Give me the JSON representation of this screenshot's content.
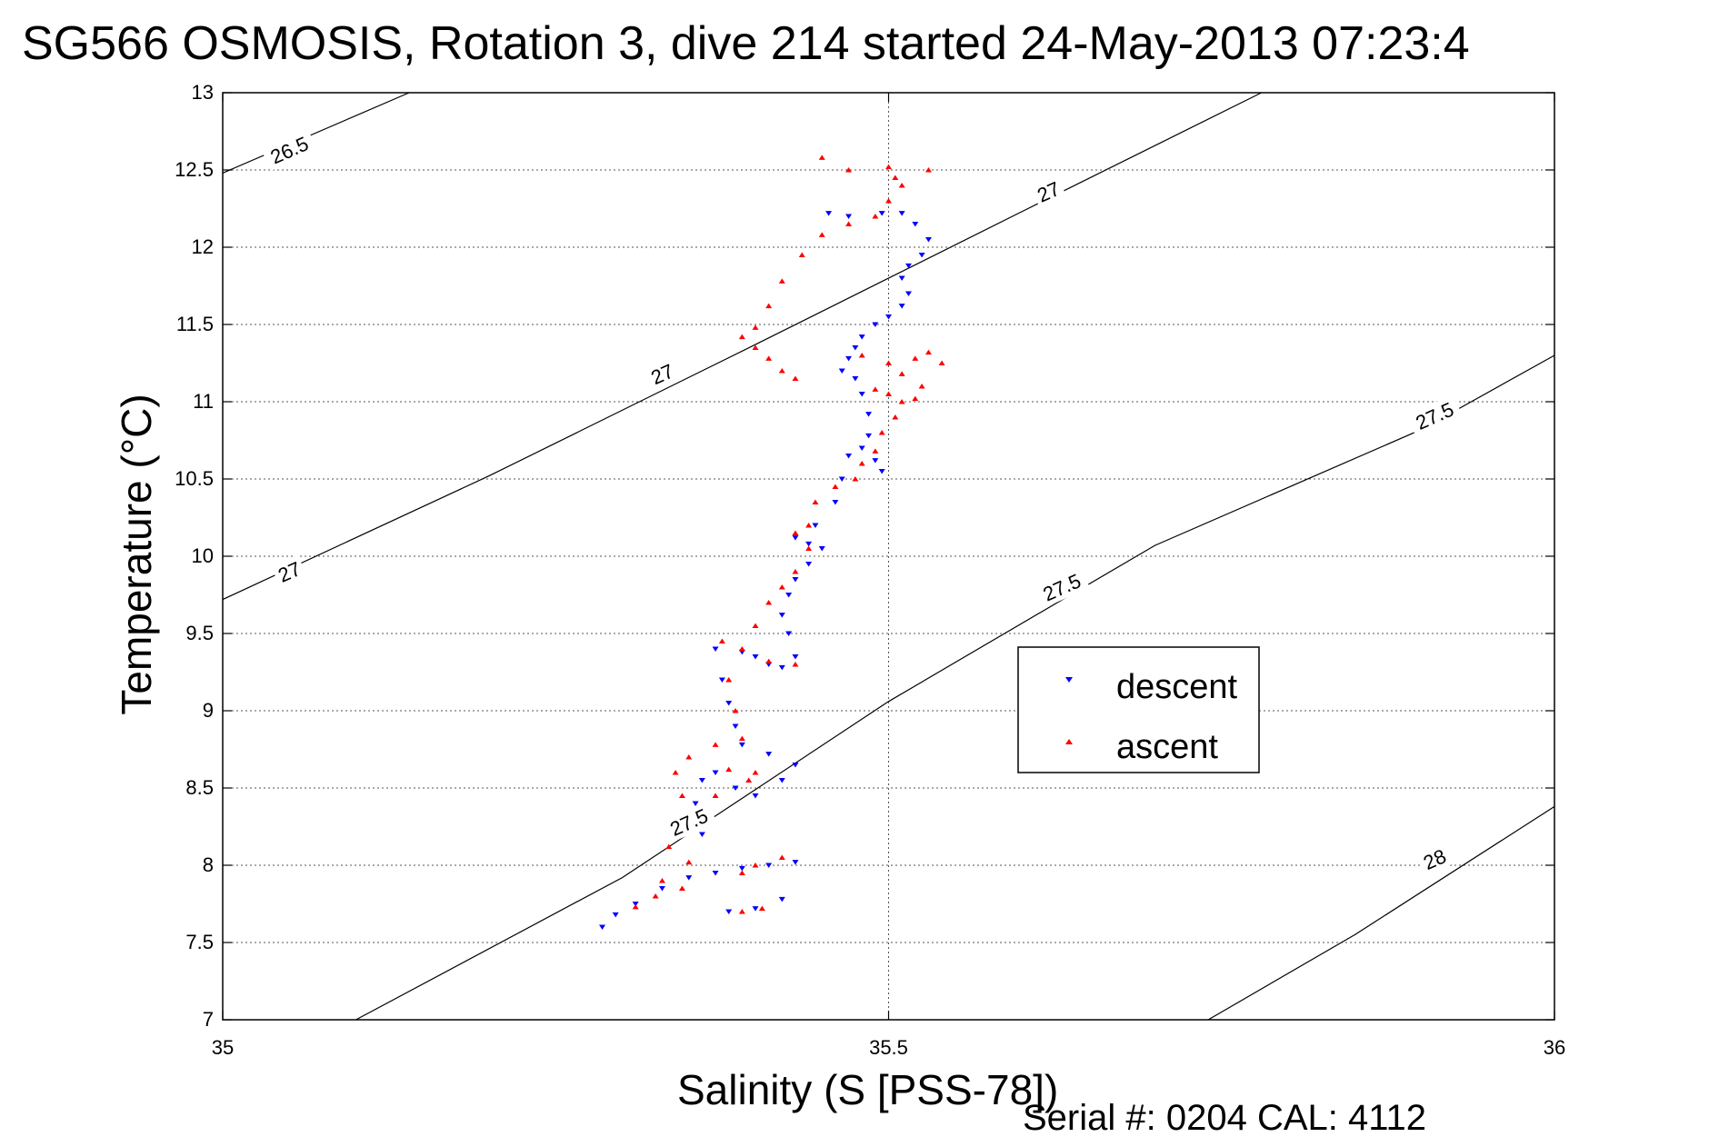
{
  "title": "SG566 OSMOSIS, Rotation 3, dive 214 started 24-May-2013 07:23:4",
  "footer": "Serial #: 0204  CAL: 4112",
  "chart_data": {
    "type": "scatter",
    "xlabel": "Salinity (S [PSS-78])",
    "ylabel": "Temperature (°C)",
    "xlim": [
      35,
      36
    ],
    "ylim": [
      7,
      13
    ],
    "xticks": [
      35,
      35.5,
      36
    ],
    "yticks": [
      7,
      7.5,
      8,
      8.5,
      9,
      9.5,
      10,
      10.5,
      11,
      11.5,
      12,
      12.5,
      13
    ],
    "grid": true,
    "legend_position": "right-center",
    "contours": [
      {
        "level": "26.5",
        "points": [
          [
            35.0,
            12.48
          ],
          [
            35.14,
            13.0
          ]
        ]
      },
      {
        "level": "27",
        "points": [
          [
            35.0,
            9.72
          ],
          [
            35.2,
            10.52
          ],
          [
            35.4,
            11.37
          ],
          [
            35.6,
            12.23
          ],
          [
            35.78,
            13.0
          ]
        ]
      },
      {
        "level": "27.5",
        "points": [
          [
            35.1,
            7.0
          ],
          [
            35.3,
            7.92
          ],
          [
            35.5,
            9.06
          ],
          [
            35.7,
            10.07
          ],
          [
            35.9,
            10.82
          ],
          [
            36.0,
            11.3
          ]
        ]
      },
      {
        "level": "28",
        "points": [
          [
            35.74,
            7.0
          ],
          [
            35.85,
            7.55
          ],
          [
            36.0,
            8.38
          ]
        ]
      }
    ],
    "contour_labels": [
      {
        "text": "26.5",
        "at": [
          35.05,
          12.63
        ]
      },
      {
        "text": "27",
        "at": [
          35.62,
          12.36
        ]
      },
      {
        "text": "27",
        "at": [
          35.33,
          11.18
        ]
      },
      {
        "text": "27",
        "at": [
          35.05,
          9.9
        ]
      },
      {
        "text": "27.5",
        "at": [
          35.91,
          10.91
        ]
      },
      {
        "text": "27.5",
        "at": [
          35.63,
          9.8
        ]
      },
      {
        "text": "27.5",
        "at": [
          35.35,
          8.28
        ]
      },
      {
        "text": "28",
        "at": [
          35.91,
          8.04
        ]
      }
    ],
    "series": [
      {
        "name": "descent",
        "color": "#0000ff",
        "marker": "triangle-down",
        "points": [
          [
            35.285,
            7.6
          ],
          [
            35.295,
            7.68
          ],
          [
            35.31,
            7.75
          ],
          [
            35.33,
            7.85
          ],
          [
            35.35,
            7.92
          ],
          [
            35.37,
            7.95
          ],
          [
            35.39,
            7.98
          ],
          [
            35.41,
            8.0
          ],
          [
            35.43,
            8.02
          ],
          [
            35.42,
            7.78
          ],
          [
            35.4,
            7.72
          ],
          [
            35.38,
            7.7
          ],
          [
            35.36,
            8.2
          ],
          [
            35.355,
            8.4
          ],
          [
            35.36,
            8.55
          ],
          [
            35.37,
            8.6
          ],
          [
            35.385,
            8.5
          ],
          [
            35.4,
            8.45
          ],
          [
            35.42,
            8.55
          ],
          [
            35.43,
            8.65
          ],
          [
            35.41,
            8.72
          ],
          [
            35.39,
            8.78
          ],
          [
            35.385,
            8.9
          ],
          [
            35.38,
            9.05
          ],
          [
            35.375,
            9.2
          ],
          [
            35.37,
            9.4
          ],
          [
            35.39,
            9.38
          ],
          [
            35.4,
            9.35
          ],
          [
            35.41,
            9.3
          ],
          [
            35.42,
            9.28
          ],
          [
            35.43,
            9.35
          ],
          [
            35.425,
            9.5
          ],
          [
            35.42,
            9.62
          ],
          [
            35.425,
            9.75
          ],
          [
            35.43,
            9.85
          ],
          [
            35.44,
            9.95
          ],
          [
            35.45,
            10.05
          ],
          [
            35.44,
            10.08
          ],
          [
            35.43,
            10.12
          ],
          [
            35.445,
            10.2
          ],
          [
            35.46,
            10.35
          ],
          [
            35.465,
            10.5
          ],
          [
            35.47,
            10.65
          ],
          [
            35.48,
            10.7
          ],
          [
            35.49,
            10.62
          ],
          [
            35.495,
            10.55
          ],
          [
            35.485,
            10.78
          ],
          [
            35.485,
            10.92
          ],
          [
            35.48,
            11.05
          ],
          [
            35.475,
            11.15
          ],
          [
            35.465,
            11.2
          ],
          [
            35.47,
            11.28
          ],
          [
            35.475,
            11.35
          ],
          [
            35.48,
            11.42
          ],
          [
            35.49,
            11.5
          ],
          [
            35.5,
            11.55
          ],
          [
            35.51,
            11.62
          ],
          [
            35.515,
            11.7
          ],
          [
            35.51,
            11.8
          ],
          [
            35.515,
            11.88
          ],
          [
            35.525,
            11.95
          ],
          [
            35.53,
            12.05
          ],
          [
            35.52,
            12.15
          ],
          [
            35.51,
            12.22
          ],
          [
            35.495,
            12.22
          ],
          [
            35.47,
            12.2
          ],
          [
            35.455,
            12.22
          ]
        ]
      },
      {
        "name": "ascent",
        "color": "#ff0000",
        "marker": "triangle-up",
        "points": [
          [
            35.31,
            7.73
          ],
          [
            35.325,
            7.8
          ],
          [
            35.345,
            7.85
          ],
          [
            35.33,
            7.9
          ],
          [
            35.35,
            8.02
          ],
          [
            35.335,
            8.12
          ],
          [
            35.345,
            8.45
          ],
          [
            35.34,
            8.6
          ],
          [
            35.35,
            8.7
          ],
          [
            35.37,
            8.78
          ],
          [
            35.38,
            8.62
          ],
          [
            35.395,
            8.55
          ],
          [
            35.37,
            8.45
          ],
          [
            35.39,
            7.7
          ],
          [
            35.405,
            7.72
          ],
          [
            35.39,
            7.95
          ],
          [
            35.4,
            8.0
          ],
          [
            35.42,
            8.05
          ],
          [
            35.4,
            8.6
          ],
          [
            35.39,
            8.82
          ],
          [
            35.385,
            9.0
          ],
          [
            35.38,
            9.2
          ],
          [
            35.375,
            9.45
          ],
          [
            35.39,
            9.4
          ],
          [
            35.41,
            9.32
          ],
          [
            35.43,
            9.3
          ],
          [
            35.4,
            9.55
          ],
          [
            35.41,
            9.7
          ],
          [
            35.42,
            9.8
          ],
          [
            35.43,
            9.9
          ],
          [
            35.44,
            10.05
          ],
          [
            35.43,
            10.15
          ],
          [
            35.44,
            10.2
          ],
          [
            35.445,
            10.35
          ],
          [
            35.46,
            10.45
          ],
          [
            35.475,
            10.5
          ],
          [
            35.48,
            10.6
          ],
          [
            35.49,
            10.68
          ],
          [
            35.495,
            10.8
          ],
          [
            35.505,
            10.9
          ],
          [
            35.51,
            11.0
          ],
          [
            35.5,
            11.05
          ],
          [
            35.49,
            11.08
          ],
          [
            35.52,
            11.02
          ],
          [
            35.525,
            11.1
          ],
          [
            35.51,
            11.18
          ],
          [
            35.5,
            11.25
          ],
          [
            35.48,
            11.3
          ],
          [
            35.52,
            11.28
          ],
          [
            35.54,
            11.25
          ],
          [
            35.53,
            11.32
          ],
          [
            35.43,
            11.15
          ],
          [
            35.42,
            11.2
          ],
          [
            35.41,
            11.28
          ],
          [
            35.4,
            11.35
          ],
          [
            35.39,
            11.42
          ],
          [
            35.4,
            11.48
          ],
          [
            35.41,
            11.62
          ],
          [
            35.42,
            11.78
          ],
          [
            35.435,
            11.95
          ],
          [
            35.45,
            12.08
          ],
          [
            35.47,
            12.15
          ],
          [
            35.49,
            12.2
          ],
          [
            35.5,
            12.3
          ],
          [
            35.505,
            12.45
          ],
          [
            35.5,
            12.52
          ],
          [
            35.47,
            12.5
          ],
          [
            35.45,
            12.58
          ],
          [
            35.53,
            12.5
          ],
          [
            35.51,
            12.4
          ]
        ]
      }
    ]
  }
}
